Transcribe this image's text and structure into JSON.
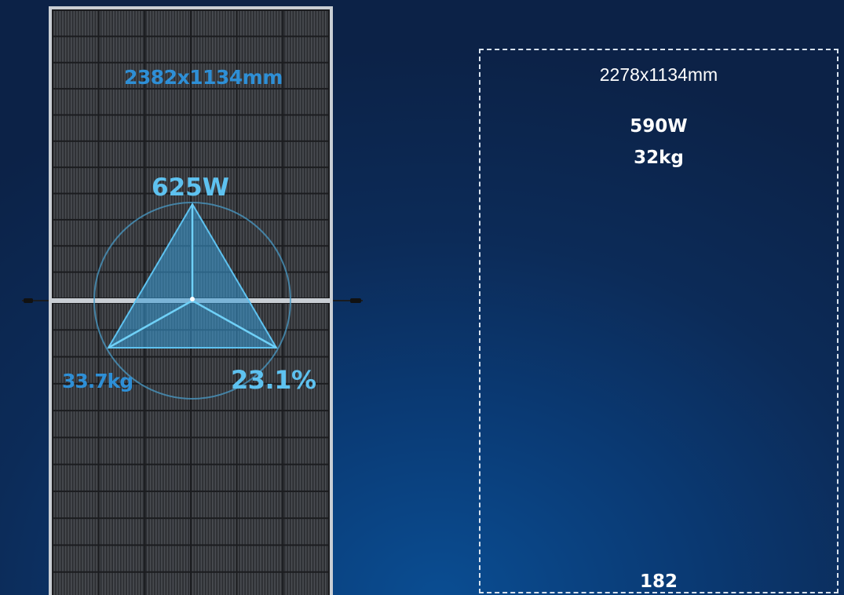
{
  "main_panel": {
    "dimensions": "2382x1134mm",
    "power": "625W",
    "weight": "33.7kg",
    "efficiency": "23.1%",
    "colors": {
      "frame": "#c9ced4",
      "cells": "#2d2f33",
      "accent_light": "#5ec2f0",
      "accent_dark": "#2e8fd6"
    }
  },
  "comparison_panel": {
    "dimensions": "2278x1134mm",
    "power": "590W",
    "weight": "32kg",
    "cells": "182"
  }
}
